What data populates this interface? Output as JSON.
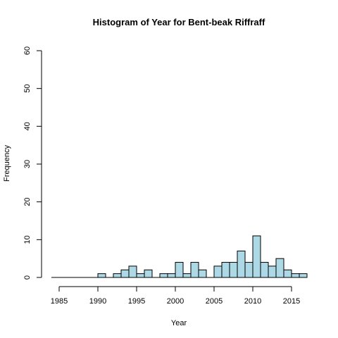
{
  "chart_data": {
    "type": "bar",
    "title": "Histogram of Year for Bent-beak Riffraff",
    "xlabel": "Year",
    "ylabel": "Frequency",
    "bins": [
      {
        "start": 1984,
        "end": 1985,
        "count": 0
      },
      {
        "start": 1985,
        "end": 1986,
        "count": 0
      },
      {
        "start": 1986,
        "end": 1987,
        "count": 0
      },
      {
        "start": 1987,
        "end": 1988,
        "count": 0
      },
      {
        "start": 1988,
        "end": 1989,
        "count": 0
      },
      {
        "start": 1989,
        "end": 1990,
        "count": 0
      },
      {
        "start": 1990,
        "end": 1991,
        "count": 1
      },
      {
        "start": 1991,
        "end": 1992,
        "count": 0
      },
      {
        "start": 1992,
        "end": 1993,
        "count": 1
      },
      {
        "start": 1993,
        "end": 1994,
        "count": 2
      },
      {
        "start": 1994,
        "end": 1995,
        "count": 3
      },
      {
        "start": 1995,
        "end": 1996,
        "count": 1
      },
      {
        "start": 1996,
        "end": 1997,
        "count": 2
      },
      {
        "start": 1997,
        "end": 1998,
        "count": 0
      },
      {
        "start": 1998,
        "end": 1999,
        "count": 1
      },
      {
        "start": 1999,
        "end": 2000,
        "count": 1
      },
      {
        "start": 2000,
        "end": 2001,
        "count": 4
      },
      {
        "start": 2001,
        "end": 2002,
        "count": 1
      },
      {
        "start": 2002,
        "end": 2003,
        "count": 4
      },
      {
        "start": 2003,
        "end": 2004,
        "count": 2
      },
      {
        "start": 2004,
        "end": 2005,
        "count": 0
      },
      {
        "start": 2005,
        "end": 2006,
        "count": 3
      },
      {
        "start": 2006,
        "end": 2007,
        "count": 4
      },
      {
        "start": 2007,
        "end": 2008,
        "count": 4
      },
      {
        "start": 2008,
        "end": 2009,
        "count": 7
      },
      {
        "start": 2009,
        "end": 2010,
        "count": 4
      },
      {
        "start": 2010,
        "end": 2011,
        "count": 11
      },
      {
        "start": 2011,
        "end": 2012,
        "count": 4
      },
      {
        "start": 2012,
        "end": 2013,
        "count": 3
      },
      {
        "start": 2013,
        "end": 2014,
        "count": 5
      },
      {
        "start": 2014,
        "end": 2015,
        "count": 2
      },
      {
        "start": 2015,
        "end": 2016,
        "count": 1
      },
      {
        "start": 2016,
        "end": 2017,
        "count": 1
      }
    ],
    "xlim": [
      1984,
      2017
    ],
    "ylim": [
      0,
      60
    ],
    "x_ticks": [
      "1985",
      "1990",
      "1995",
      "2000",
      "2005",
      "2010",
      "2015"
    ],
    "y_ticks": [
      "0",
      "10",
      "20",
      "30",
      "40",
      "50",
      "60"
    ],
    "grid": false,
    "colors": {
      "bar_fill": "#add8e6",
      "bar_stroke": "#000000"
    }
  }
}
